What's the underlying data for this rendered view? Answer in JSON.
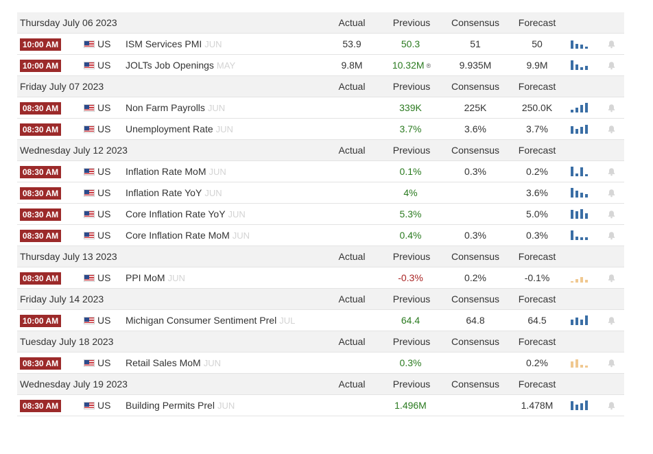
{
  "columns": {
    "actual": "Actual",
    "previous": "Previous",
    "consensus": "Consensus",
    "forecast": "Forecast"
  },
  "colors": {
    "time_badge": "#9c2a2a",
    "positive": "#2a7a1f",
    "negative": "#a92424",
    "spark": "#3a6ea5",
    "spark_alt": "#f0c890"
  },
  "groups": [
    {
      "date": "Thursday July 06 2023",
      "events": [
        {
          "time": "10:00 AM",
          "country": "US",
          "name": "ISM Services PMI",
          "period": "JUN",
          "actual": "53.9",
          "previous": "50.3",
          "previous_color": "green",
          "revised": "",
          "consensus": "51",
          "forecast": "50",
          "spark": [
            0.85,
            0.5,
            0.45,
            0.2
          ],
          "spark_style": "blue"
        },
        {
          "time": "10:00 AM",
          "country": "US",
          "name": "JOLTs Job Openings",
          "period": "MAY",
          "actual": "9.8M",
          "previous": "10.32M",
          "previous_color": "green",
          "revised": "®",
          "consensus": "9.935M",
          "forecast": "9.9M",
          "spark": [
            1.0,
            0.6,
            0.3,
            0.45
          ],
          "spark_style": "blue"
        }
      ]
    },
    {
      "date": "Friday July 07 2023",
      "events": [
        {
          "time": "08:30 AM",
          "country": "US",
          "name": "Non Farm Payrolls",
          "period": "JUN",
          "actual": "",
          "previous": "339K",
          "previous_color": "green",
          "revised": "",
          "consensus": "225K",
          "forecast": "250.0K",
          "spark": [
            0.3,
            0.5,
            0.75,
            1.0
          ],
          "spark_style": "blue"
        },
        {
          "time": "08:30 AM",
          "country": "US",
          "name": "Unemployment Rate",
          "period": "JUN",
          "actual": "",
          "previous": "3.7%",
          "previous_color": "green",
          "revised": "",
          "consensus": "3.6%",
          "forecast": "3.7%",
          "spark": [
            0.8,
            0.5,
            0.7,
            0.95
          ],
          "spark_style": "blue"
        }
      ]
    },
    {
      "date": "Wednesday July 12 2023",
      "events": [
        {
          "time": "08:30 AM",
          "country": "US",
          "name": "Inflation Rate MoM",
          "period": "JUN",
          "actual": "",
          "previous": "0.1%",
          "previous_color": "green",
          "revised": "",
          "consensus": "0.3%",
          "forecast": "0.2%",
          "spark": [
            1.0,
            0.3,
            0.9,
            0.2
          ],
          "spark_style": "blue"
        },
        {
          "time": "08:30 AM",
          "country": "US",
          "name": "Inflation Rate YoY",
          "period": "JUN",
          "actual": "",
          "previous": "4%",
          "previous_color": "green",
          "revised": "",
          "consensus": "",
          "forecast": "3.6%",
          "spark": [
            1.0,
            0.7,
            0.5,
            0.35
          ],
          "spark_style": "blue"
        },
        {
          "time": "08:30 AM",
          "country": "US",
          "name": "Core Inflation Rate YoY",
          "period": "JUN",
          "actual": "",
          "previous": "5.3%",
          "previous_color": "green",
          "revised": "",
          "consensus": "",
          "forecast": "5.0%",
          "spark": [
            0.95,
            0.8,
            1.0,
            0.6
          ],
          "spark_style": "blue"
        },
        {
          "time": "08:30 AM",
          "country": "US",
          "name": "Core Inflation Rate MoM",
          "period": "JUN",
          "actual": "",
          "previous": "0.4%",
          "previous_color": "green",
          "revised": "",
          "consensus": "0.3%",
          "forecast": "0.3%",
          "spark": [
            1.0,
            0.35,
            0.3,
            0.25
          ],
          "spark_style": "blue"
        }
      ]
    },
    {
      "date": "Thursday July 13 2023",
      "events": [
        {
          "time": "08:30 AM",
          "country": "US",
          "name": "PPI MoM",
          "period": "JUN",
          "actual": "",
          "previous": "-0.3%",
          "previous_color": "red",
          "revised": "",
          "consensus": "0.2%",
          "forecast": "-0.1%",
          "spark": [
            0.15,
            0.35,
            0.55,
            0.3
          ],
          "spark_style": "orange"
        }
      ]
    },
    {
      "date": "Friday July 14 2023",
      "events": [
        {
          "time": "10:00 AM",
          "country": "US",
          "name": "Michigan Consumer Sentiment Prel",
          "period": "JUL",
          "actual": "",
          "previous": "64.4",
          "previous_color": "green",
          "revised": "",
          "consensus": "64.8",
          "forecast": "64.5",
          "spark": [
            0.55,
            0.75,
            0.6,
            1.0
          ],
          "spark_style": "blue"
        }
      ]
    },
    {
      "date": "Tuesday July 18 2023",
      "events": [
        {
          "time": "08:30 AM",
          "country": "US",
          "name": "Retail Sales MoM",
          "period": "JUN",
          "actual": "",
          "previous": "0.3%",
          "previous_color": "green",
          "revised": "",
          "consensus": "",
          "forecast": "0.2%",
          "spark": [
            0.65,
            0.85,
            0.25,
            0.2
          ],
          "spark_style": "orange"
        }
      ]
    },
    {
      "date": "Wednesday July 19 2023",
      "events": [
        {
          "time": "08:30 AM",
          "country": "US",
          "name": "Building Permits Prel",
          "period": "JUN",
          "actual": "",
          "previous": "1.496M",
          "previous_color": "green",
          "revised": "",
          "consensus": "",
          "forecast": "1.478M",
          "spark": [
            0.9,
            0.6,
            0.7,
            1.0
          ],
          "spark_style": "blue"
        }
      ]
    }
  ]
}
